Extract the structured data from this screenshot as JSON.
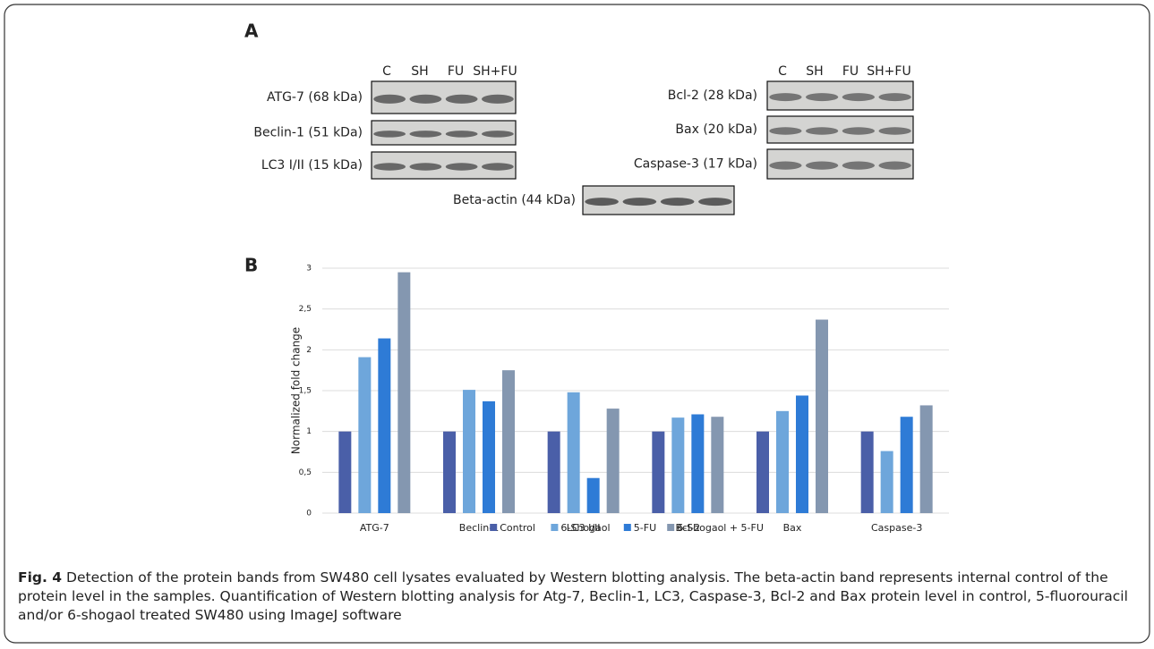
{
  "panel_a": {
    "label": "A",
    "left_lanes": [
      "C",
      "SH",
      "FU",
      "SH+FU"
    ],
    "right_lanes": [
      "C",
      "SH",
      "FU",
      "SH+FU"
    ],
    "left_blots": [
      "ATG-7 (68 kDa)",
      "Beclin-1 (51 kDa)",
      "LC3 I/II (15 kDa)"
    ],
    "right_blots": [
      "Bcl-2 (28 kDa)",
      "Bax (20 kDa)",
      "Caspase-3 (17 kDa)"
    ],
    "loading_control": "Beta-actin (44 kDa)"
  },
  "panel_b": {
    "label": "B"
  },
  "chart_data": {
    "type": "bar",
    "y_label": "Normalized fold change",
    "categories": [
      "ATG-7",
      "Beclin-1",
      "LC3 I/II",
      "Bcl-2",
      "Bax",
      "Caspase-3"
    ],
    "series": [
      {
        "name": "Control",
        "color": "#4a5fa8",
        "values": [
          1,
          1,
          1,
          1,
          1,
          1
        ]
      },
      {
        "name": "6-Shogaol",
        "color": "#6ea6db",
        "values": [
          1.91,
          1.51,
          1.48,
          1.17,
          1.25,
          0.76
        ]
      },
      {
        "name": "5-FU",
        "color": "#2e7bd6",
        "values": [
          2.14,
          1.37,
          0.43,
          1.21,
          1.44,
          1.18
        ]
      },
      {
        "name": "6-Shogaol + 5-FU",
        "color": "#8497b0",
        "values": [
          2.95,
          1.75,
          1.28,
          1.18,
          2.37,
          1.32
        ]
      }
    ],
    "ylim": [
      0,
      3
    ],
    "yticks": [
      0,
      {
        "value": 0.5,
        "label": "0,5"
      },
      1,
      {
        "value": 1.5,
        "label": "1,5"
      },
      2,
      {
        "value": 2.5,
        "label": "2,5"
      },
      3
    ],
    "grid": true,
    "legend": "bottom"
  },
  "caption": {
    "label": "Fig. 4",
    "text": "Detection of the protein bands from SW480 cell lysates evaluated by Western blotting analysis. The beta-actin band represents internal control of the protein level in the samples. Quantification of Western blotting analysis for Atg-7, Beclin-1, LC3, Caspase-3, Bcl-2 and Bax protein level in control, 5-fluorouracil and/or 6-shogaol treated SW480 using ImageJ software"
  }
}
